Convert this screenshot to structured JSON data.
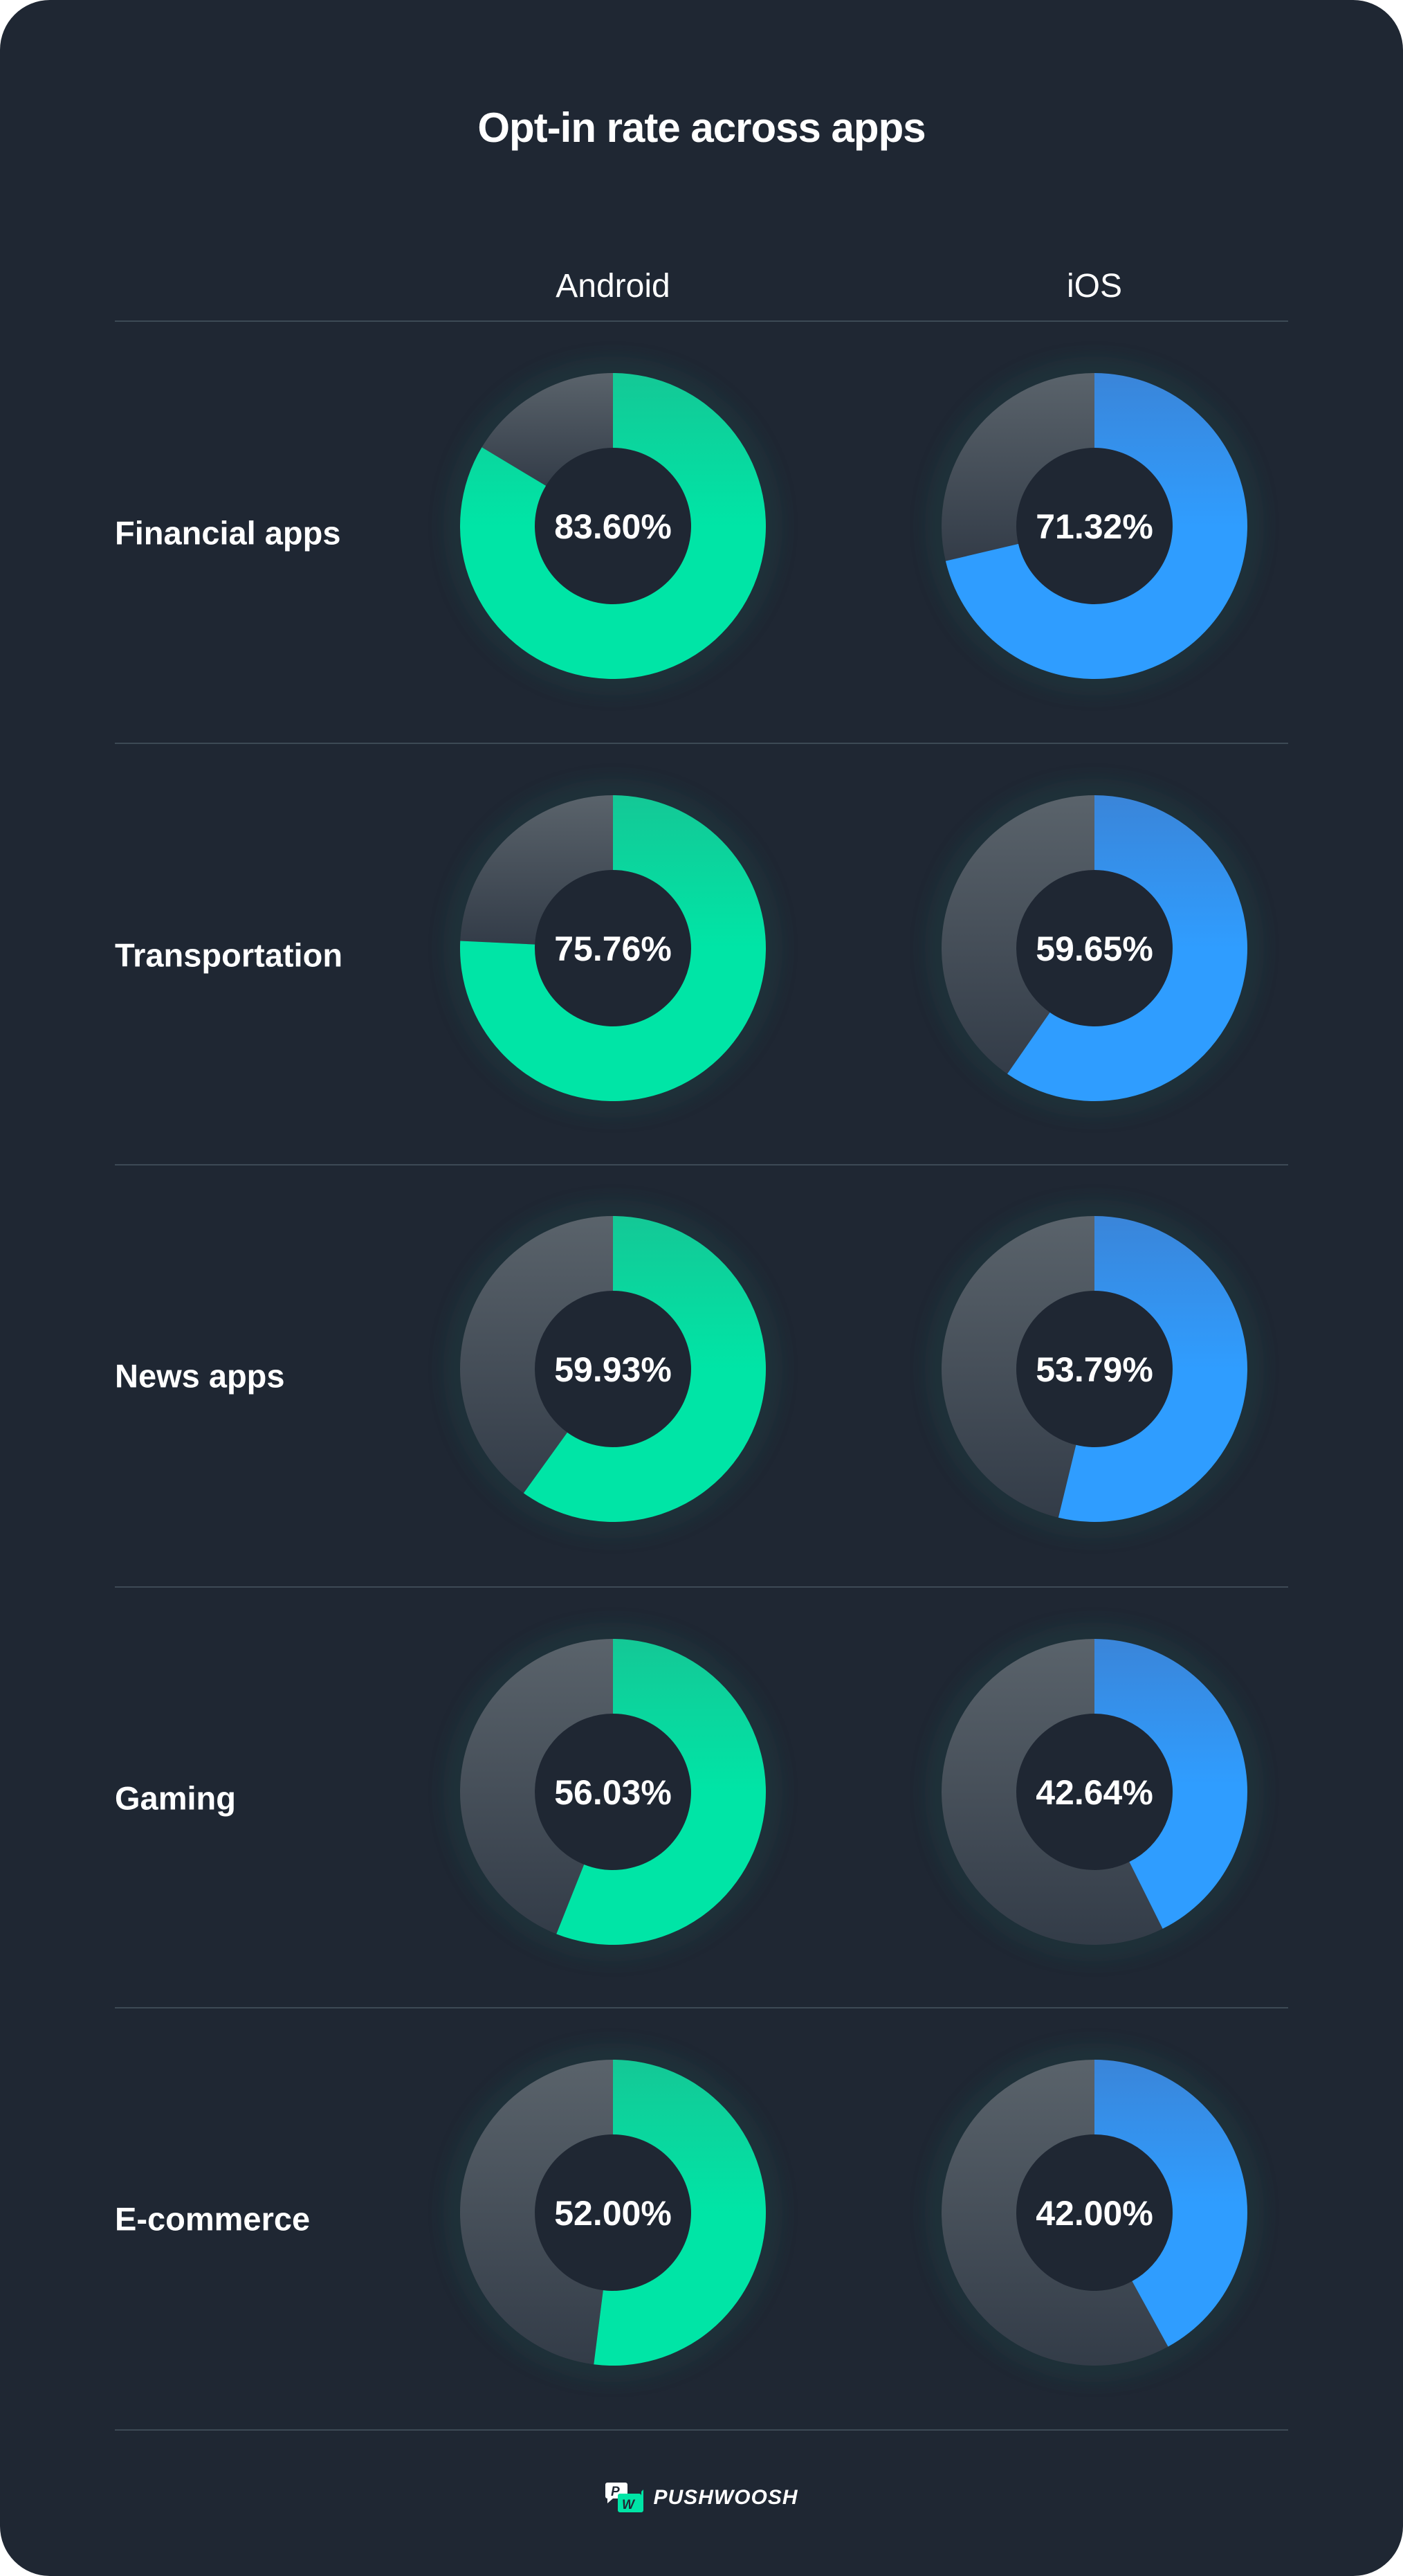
{
  "chart_data": {
    "type": "pie",
    "variant": "donut-grid",
    "title": "Opt-in rate across apps",
    "columns": [
      "Android",
      "iOS"
    ],
    "rows": [
      "Financial apps",
      "Transportation",
      "News apps",
      "Gaming",
      "E-commerce"
    ],
    "series": [
      {
        "name": "Android",
        "values": [
          83.6,
          75.76,
          59.93,
          56.03,
          52.0
        ],
        "labels": [
          "83.60%",
          "75.76%",
          "59.93%",
          "56.03%",
          "52.00%"
        ],
        "color": "#00e5a6"
      },
      {
        "name": "iOS",
        "values": [
          71.32,
          59.65,
          53.79,
          42.64,
          42.0
        ],
        "labels": [
          "71.32%",
          "59.65%",
          "53.79%",
          "42.64%",
          "42.00%"
        ],
        "color": "#2f9dff"
      }
    ],
    "remainder_color": "#4b545e",
    "max": 100
  },
  "brand": {
    "name": "PUSHWOOSH",
    "logo_letters": "PW",
    "accent": "#00e5a6"
  },
  "colors": {
    "background": "#1f2733",
    "divider": "#3d4a55"
  }
}
